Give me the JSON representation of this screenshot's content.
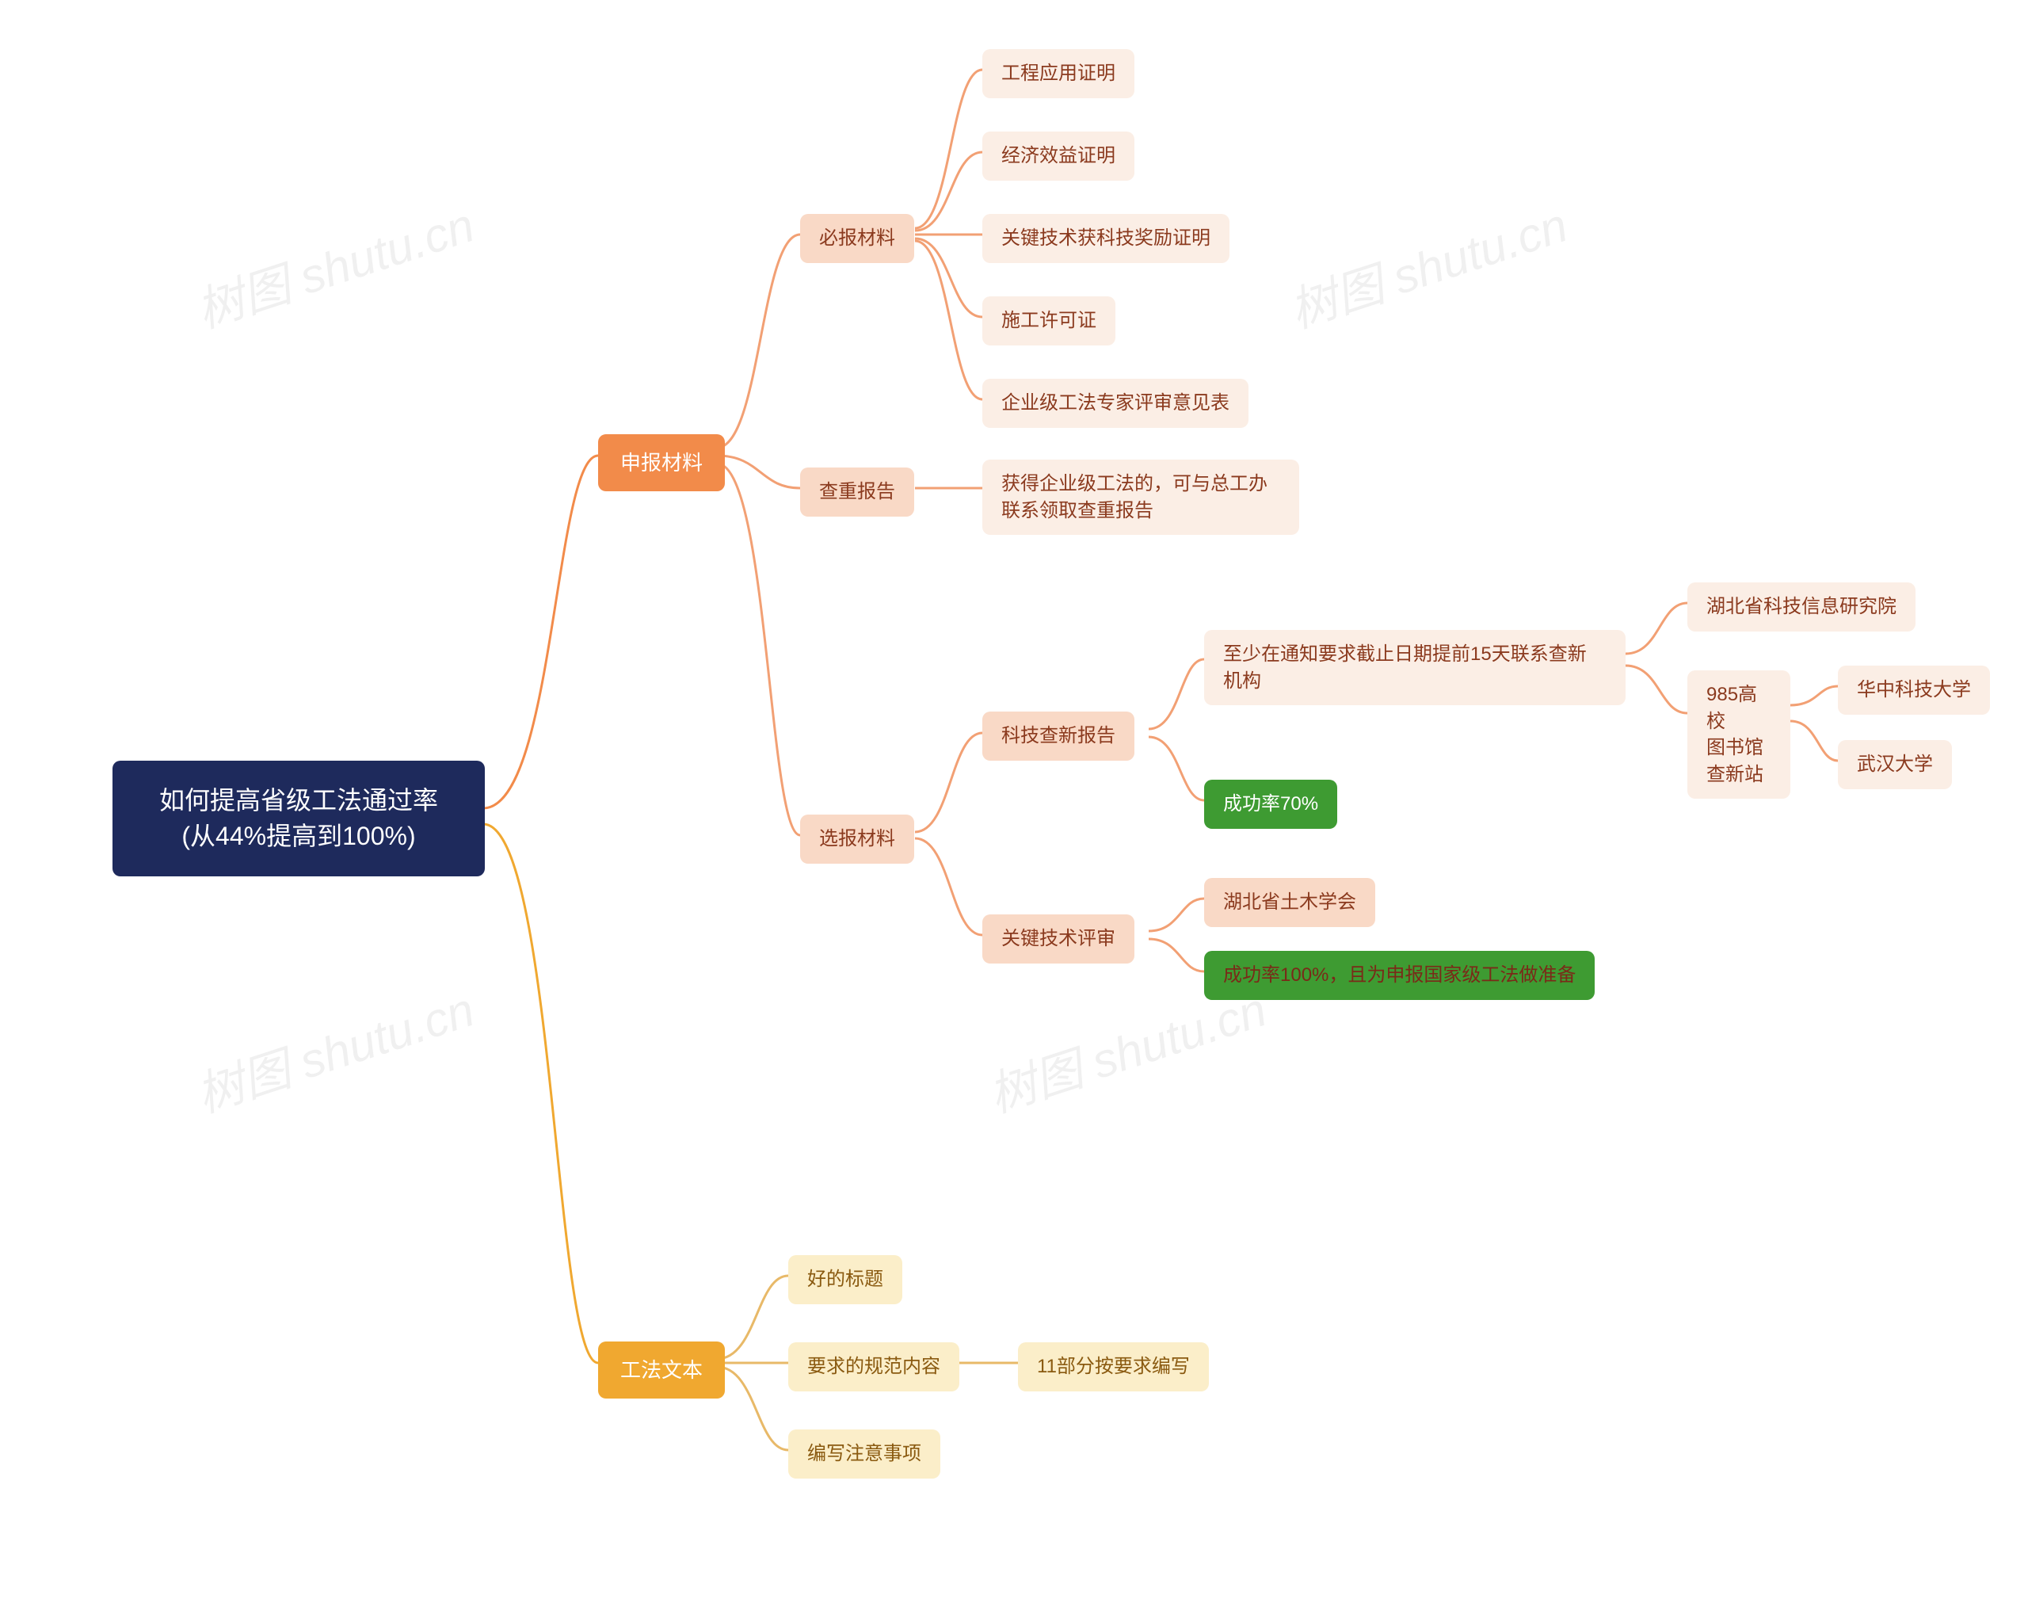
{
  "watermark": "树图 shutu.cn",
  "colors": {
    "root_bg": "#1e2a5c",
    "root_text": "#ffffff",
    "orange_bg": "#f28b4a",
    "orange_text": "#ffffff",
    "peach_bg": "#f9d9c6",
    "peach_text": "#8b3a1e",
    "pale_bg": "#fbeee5",
    "pale_text": "#8b3a1e",
    "green_bg": "#3e9b32",
    "green_text": "#ffffff",
    "green_dark_text": "#7a2a18",
    "yellow_bg": "#f0a830",
    "yellow_text": "#ffffff",
    "cream_bg": "#fbeec9",
    "cream_text": "#8a5a10",
    "conn_orange": "#f28b4a",
    "conn_peach": "#f2a074",
    "conn_cream": "#e8b968"
  },
  "root": "如何提高省级工法通过率\n(从44%提高到100%)",
  "branch1": {
    "label": "申报材料",
    "sub1": {
      "label": "必报材料",
      "children": [
        "工程应用证明",
        "经济效益证明",
        "关键技术获科技奖励证明",
        "施工许可证",
        "企业级工法专家评审意见表"
      ]
    },
    "sub2": {
      "label": "查重报告",
      "child": "获得企业级工法的，可与总工办\n联系领取查重报告"
    },
    "sub3": {
      "label": "选报材料",
      "child1": {
        "label": "科技查新报告",
        "item1": {
          "label": "至少在通知要求截止日期提前15天联系查新\n机构",
          "child1": "湖北省科技信息研究院",
          "child2": {
            "label": "985高校\n图书馆\n查新站",
            "items": [
              "华中科技大学",
              "武汉大学"
            ]
          }
        },
        "item2": "成功率70%"
      },
      "child2": {
        "label": "关键技术评审",
        "item1": "湖北省土木学会",
        "item2": "成功率100%，且为申报国家级工法做准备"
      }
    }
  },
  "branch2": {
    "label": "工法文本",
    "children": [
      {
        "label": "好的标题"
      },
      {
        "label": "要求的规范内容",
        "child": "11部分按要求编写"
      },
      {
        "label": "编写注意事项"
      }
    ]
  }
}
